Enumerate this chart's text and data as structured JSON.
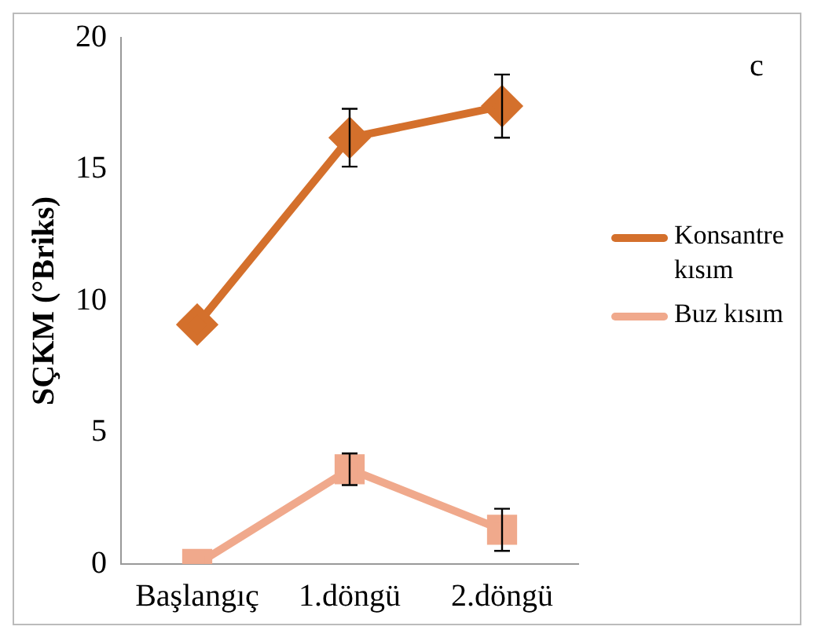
{
  "chart_data": {
    "type": "line",
    "ylabel": "SÇKM (°Briks)",
    "annotations": [
      "c"
    ],
    "categories": [
      "Başlangıç",
      "1.döngü",
      "2.döngü"
    ],
    "series": [
      {
        "name": "Konsantre kısım",
        "color": "#d4702c",
        "values": [
          9.1,
          16.2,
          17.4
        ],
        "errors": [
          null,
          1.1,
          1.2
        ],
        "marker": "diamond"
      },
      {
        "name": "Buz kısım",
        "color": "#f0a98c",
        "values": [
          0,
          3.6,
          1.3
        ],
        "errors": [
          null,
          0.6,
          0.8
        ],
        "marker": "square"
      }
    ],
    "ylim": [
      0,
      20
    ],
    "yticks": [
      0,
      5,
      10,
      15,
      20
    ],
    "grid": false,
    "legend": "right",
    "line_style": "solid"
  }
}
